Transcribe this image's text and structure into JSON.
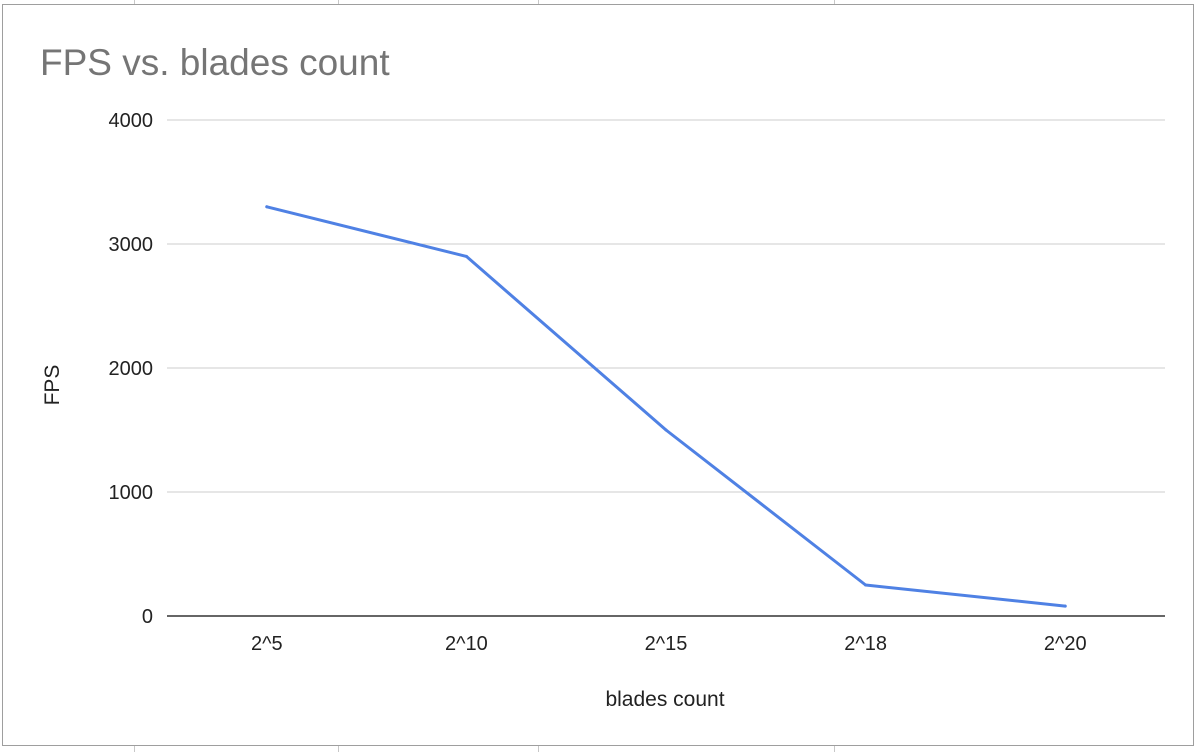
{
  "chart_data": {
    "type": "line",
    "title": "FPS vs. blades count",
    "xlabel": "blades count",
    "ylabel": "FPS",
    "categories": [
      "2^5",
      "2^10",
      "2^15",
      "2^18",
      "2^20"
    ],
    "series": [
      {
        "values": [
          3300,
          2900,
          1500,
          250,
          80
        ],
        "color": "#4f81e4"
      }
    ],
    "ylim": [
      0,
      4000
    ],
    "yticks": [
      "0",
      "1000",
      "2000",
      "3000",
      "4000"
    ],
    "grid": true,
    "legend": "none"
  }
}
